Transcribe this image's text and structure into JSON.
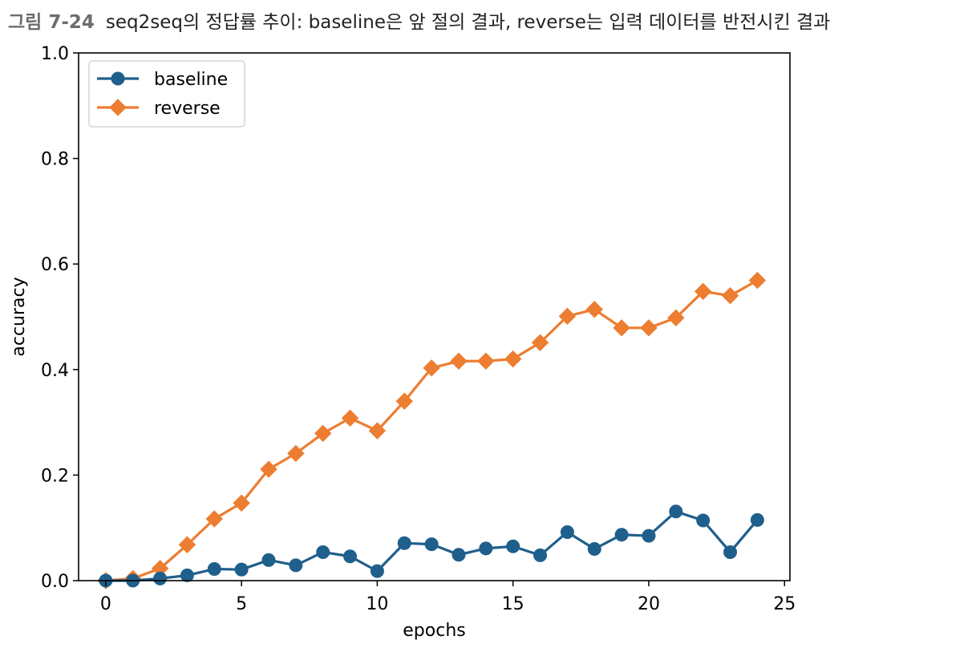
{
  "caption": {
    "figure_label": "그림 7-24",
    "text": "seq2seq의 정답률 추이: baseline은 앞 절의 결과, reverse는 입력 데이터를 반전시킨 결과"
  },
  "colors": {
    "baseline": "#1f5f8b",
    "reverse": "#ed7d31",
    "axis": "#000000"
  },
  "chart_data": {
    "type": "line",
    "title": "",
    "xlabel": "epochs",
    "ylabel": "accuracy",
    "xlim": [
      -1,
      25.2
    ],
    "ylim": [
      0.0,
      1.0
    ],
    "xticks": [
      0,
      5,
      10,
      15,
      20,
      25
    ],
    "xtick_labels": [
      "0",
      "5",
      "10",
      "15",
      "20",
      "25"
    ],
    "yticks": [
      0.0,
      0.2,
      0.4,
      0.6,
      0.8,
      1.0
    ],
    "ytick_labels": [
      "0.0",
      "0.2",
      "0.4",
      "0.6",
      "0.8",
      "1.0"
    ],
    "grid": false,
    "legend_position": "top-left",
    "x": [
      0,
      1,
      2,
      3,
      4,
      5,
      6,
      7,
      8,
      9,
      10,
      11,
      12,
      13,
      14,
      15,
      16,
      17,
      18,
      19,
      20,
      21,
      22,
      23,
      24
    ],
    "series": [
      {
        "name": "baseline",
        "marker": "circle",
        "color": "#1f5f8b",
        "values": [
          0.0,
          0.0,
          0.004,
          0.01,
          0.022,
          0.021,
          0.039,
          0.029,
          0.054,
          0.046,
          0.018,
          0.071,
          0.069,
          0.049,
          0.061,
          0.065,
          0.048,
          0.092,
          0.06,
          0.087,
          0.085,
          0.131,
          0.114,
          0.054,
          0.115
        ]
      },
      {
        "name": "reverse",
        "marker": "diamond",
        "color": "#ed7d31",
        "values": [
          0.0,
          0.004,
          0.023,
          0.068,
          0.117,
          0.147,
          0.211,
          0.241,
          0.279,
          0.308,
          0.284,
          0.34,
          0.403,
          0.416,
          0.416,
          0.42,
          0.451,
          0.501,
          0.514,
          0.479,
          0.479,
          0.498,
          0.548,
          0.54,
          0.569
        ]
      }
    ]
  }
}
